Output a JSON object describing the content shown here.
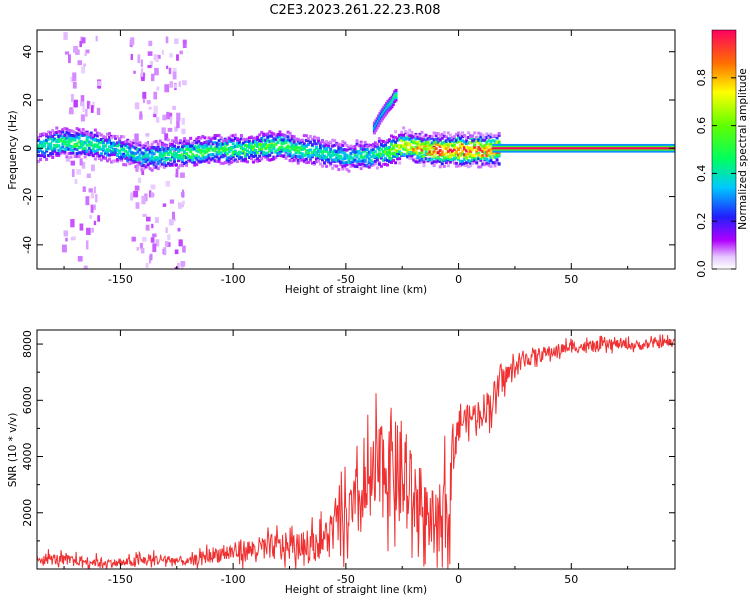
{
  "title": "C2E3.2023.261.22.23.R08",
  "chart_data": [
    {
      "type": "heatmap",
      "xlabel": "Height of straight line (km)",
      "ylabel": "Frequency (Hz)",
      "xlim": [
        -187,
        96
      ],
      "ylim": [
        -50,
        49
      ],
      "xticks": [
        -150,
        -100,
        -50,
        0,
        50
      ],
      "yticks": [
        -40,
        -20,
        0,
        20,
        40
      ],
      "colorbar": {
        "label": "Normalized spectral amplitude",
        "range": [
          0,
          1
        ],
        "ticks": [
          0.0,
          0.2,
          0.4,
          0.6,
          0.8
        ]
      },
      "ridge": {
        "x": [
          -187,
          -180,
          -170,
          -160,
          -150,
          -140,
          -130,
          -120,
          -110,
          -100,
          -90,
          -80,
          -70,
          -60,
          -50,
          -45,
          -40,
          -35,
          -30,
          -25,
          -20,
          -10,
          0,
          10,
          20,
          50,
          96
        ],
        "frequency_hz": [
          1,
          3,
          3,
          2,
          0,
          -3,
          -2,
          -1,
          0,
          0,
          1,
          2,
          0,
          -1,
          -3,
          -2,
          -3,
          -1,
          0,
          2,
          1,
          0,
          0,
          0,
          0,
          0,
          0
        ],
        "amplitude": [
          0.45,
          0.5,
          0.5,
          0.45,
          0.4,
          0.4,
          0.45,
          0.5,
          0.5,
          0.5,
          0.55,
          0.55,
          0.5,
          0.45,
          0.4,
          0.45,
          0.4,
          0.5,
          0.65,
          0.75,
          0.8,
          0.9,
          0.95,
          1.0,
          1.0,
          1.0,
          1.0
        ]
      },
      "branch": {
        "x": [
          -38,
          -35,
          -32,
          -30,
          -29,
          -28
        ],
        "frequency_hz": [
          9,
          14,
          18,
          20,
          22,
          23
        ],
        "amplitude": [
          0.35,
          0.35,
          0.4,
          0.45,
          0.5,
          0.5
        ]
      }
    },
    {
      "type": "line",
      "xlabel": "Height of straight line (km)",
      "ylabel": "SNR (10 * v/v)",
      "xlim": [
        -187,
        96
      ],
      "ylim": [
        0,
        8500
      ],
      "xticks": [
        -150,
        -100,
        -50,
        0,
        50
      ],
      "yticks": [
        2000,
        4000,
        6000,
        8000
      ],
      "series": [
        {
          "name": "SNR",
          "color": "#f03030",
          "x": [
            -187,
            -180,
            -170,
            -160,
            -150,
            -140,
            -130,
            -120,
            -110,
            -100,
            -90,
            -80,
            -70,
            -60,
            -55,
            -50,
            -45,
            -40,
            -35,
            -30,
            -25,
            -20,
            -15,
            -10,
            -5,
            -2,
            0,
            5,
            10,
            15,
            20,
            30,
            40,
            50,
            60,
            70,
            80,
            90,
            96
          ],
          "values": [
            400,
            350,
            300,
            250,
            200,
            300,
            350,
            250,
            500,
            600,
            700,
            800,
            800,
            1000,
            1500,
            1800,
            2200,
            2800,
            3500,
            3800,
            3000,
            2500,
            2000,
            1600,
            2000,
            4500,
            5200,
            5400,
            5600,
            6000,
            6800,
            7500,
            7700,
            7900,
            7900,
            8000,
            7950,
            8050,
            8050
          ],
          "spread": [
            300,
            300,
            250,
            250,
            200,
            300,
            300,
            200,
            400,
            500,
            600,
            700,
            700,
            900,
            1200,
            1500,
            1800,
            2200,
            2500,
            2800,
            2500,
            2200,
            1800,
            1500,
            2500,
            1500,
            700,
            700,
            800,
            900,
            600,
            450,
            350,
            300,
            300,
            250,
            250,
            250,
            250
          ]
        }
      ]
    }
  ]
}
